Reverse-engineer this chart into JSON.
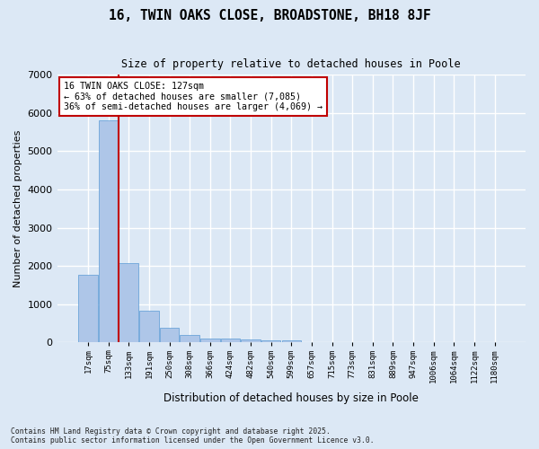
{
  "title1": "16, TWIN OAKS CLOSE, BROADSTONE, BH18 8JF",
  "title2": "Size of property relative to detached houses in Poole",
  "xlabel": "Distribution of detached houses by size in Poole",
  "ylabel": "Number of detached properties",
  "annotation_line1": "16 TWIN OAKS CLOSE: 127sqm",
  "annotation_line2": "← 63% of detached houses are smaller (7,085)",
  "annotation_line3": "36% of semi-detached houses are larger (4,069) →",
  "footer": "Contains HM Land Registry data © Crown copyright and database right 2025.\nContains public sector information licensed under the Open Government Licence v3.0.",
  "categories": [
    "17sqm",
    "75sqm",
    "133sqm",
    "191sqm",
    "250sqm",
    "308sqm",
    "366sqm",
    "424sqm",
    "482sqm",
    "540sqm",
    "599sqm",
    "657sqm",
    "715sqm",
    "773sqm",
    "831sqm",
    "889sqm",
    "947sqm",
    "1006sqm",
    "1064sqm",
    "1122sqm",
    "1180sqm"
  ],
  "values": [
    1780,
    5820,
    2080,
    820,
    380,
    205,
    110,
    95,
    70,
    55,
    45,
    0,
    0,
    0,
    0,
    0,
    0,
    0,
    0,
    0,
    0
  ],
  "bar_color": "#aec6e8",
  "bar_edge_color": "#5b9bd5",
  "vline_color": "#c00000",
  "vline_x_idx": 2,
  "annotation_box_color": "#c00000",
  "annotation_bg": "white",
  "background_color": "#dce8f5",
  "grid_color": "white",
  "ylim": [
    0,
    7000
  ],
  "yticks": [
    0,
    1000,
    2000,
    3000,
    4000,
    5000,
    6000,
    7000
  ]
}
